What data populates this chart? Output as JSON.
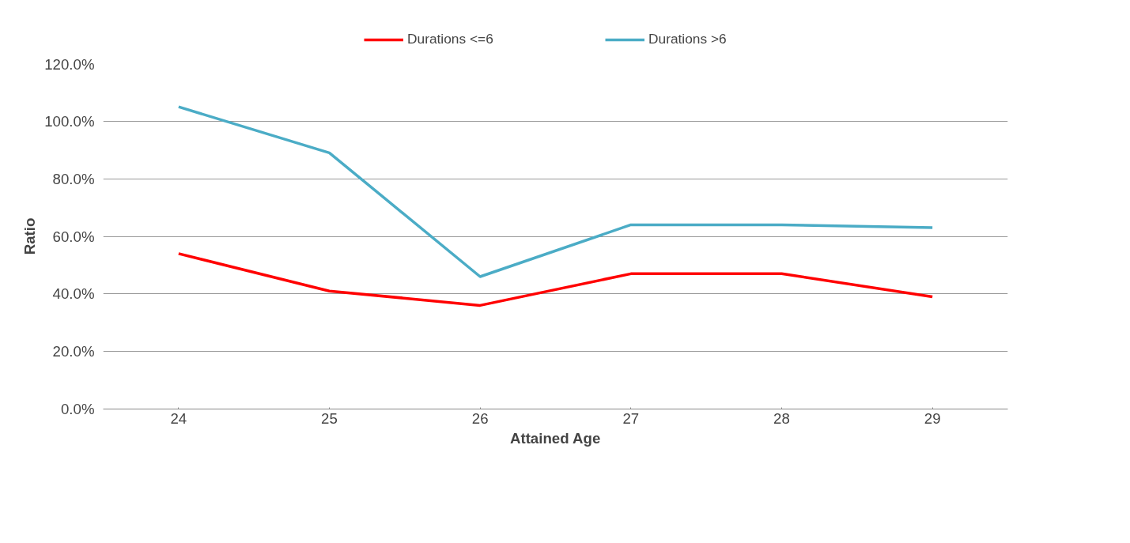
{
  "chart_data": {
    "type": "line",
    "xlabel": "Attained Age",
    "ylabel": "Ratio",
    "categories": [
      "24",
      "25",
      "26",
      "27",
      "28",
      "29"
    ],
    "series": [
      {
        "name": "Durations <=6",
        "color": "#ff0000",
        "values": [
          54,
          41,
          36,
          47,
          47,
          39
        ]
      },
      {
        "name": "Durations >6",
        "color": "#4bacc6",
        "values": [
          105,
          89,
          46,
          64,
          64,
          63
        ]
      }
    ],
    "ylim": [
      0,
      120
    ],
    "yticks": [
      {
        "value": 0,
        "label": "0.0%"
      },
      {
        "value": 20,
        "label": "20.0%"
      },
      {
        "value": 40,
        "label": "40.0%"
      },
      {
        "value": 60,
        "label": "60.0%"
      },
      {
        "value": 80,
        "label": "80.0%"
      },
      {
        "value": 100,
        "label": "100.0%"
      },
      {
        "value": 120,
        "label": "120.0%"
      }
    ],
    "grid": "y",
    "legend": "top",
    "marker": "none",
    "line_style": "solid"
  }
}
